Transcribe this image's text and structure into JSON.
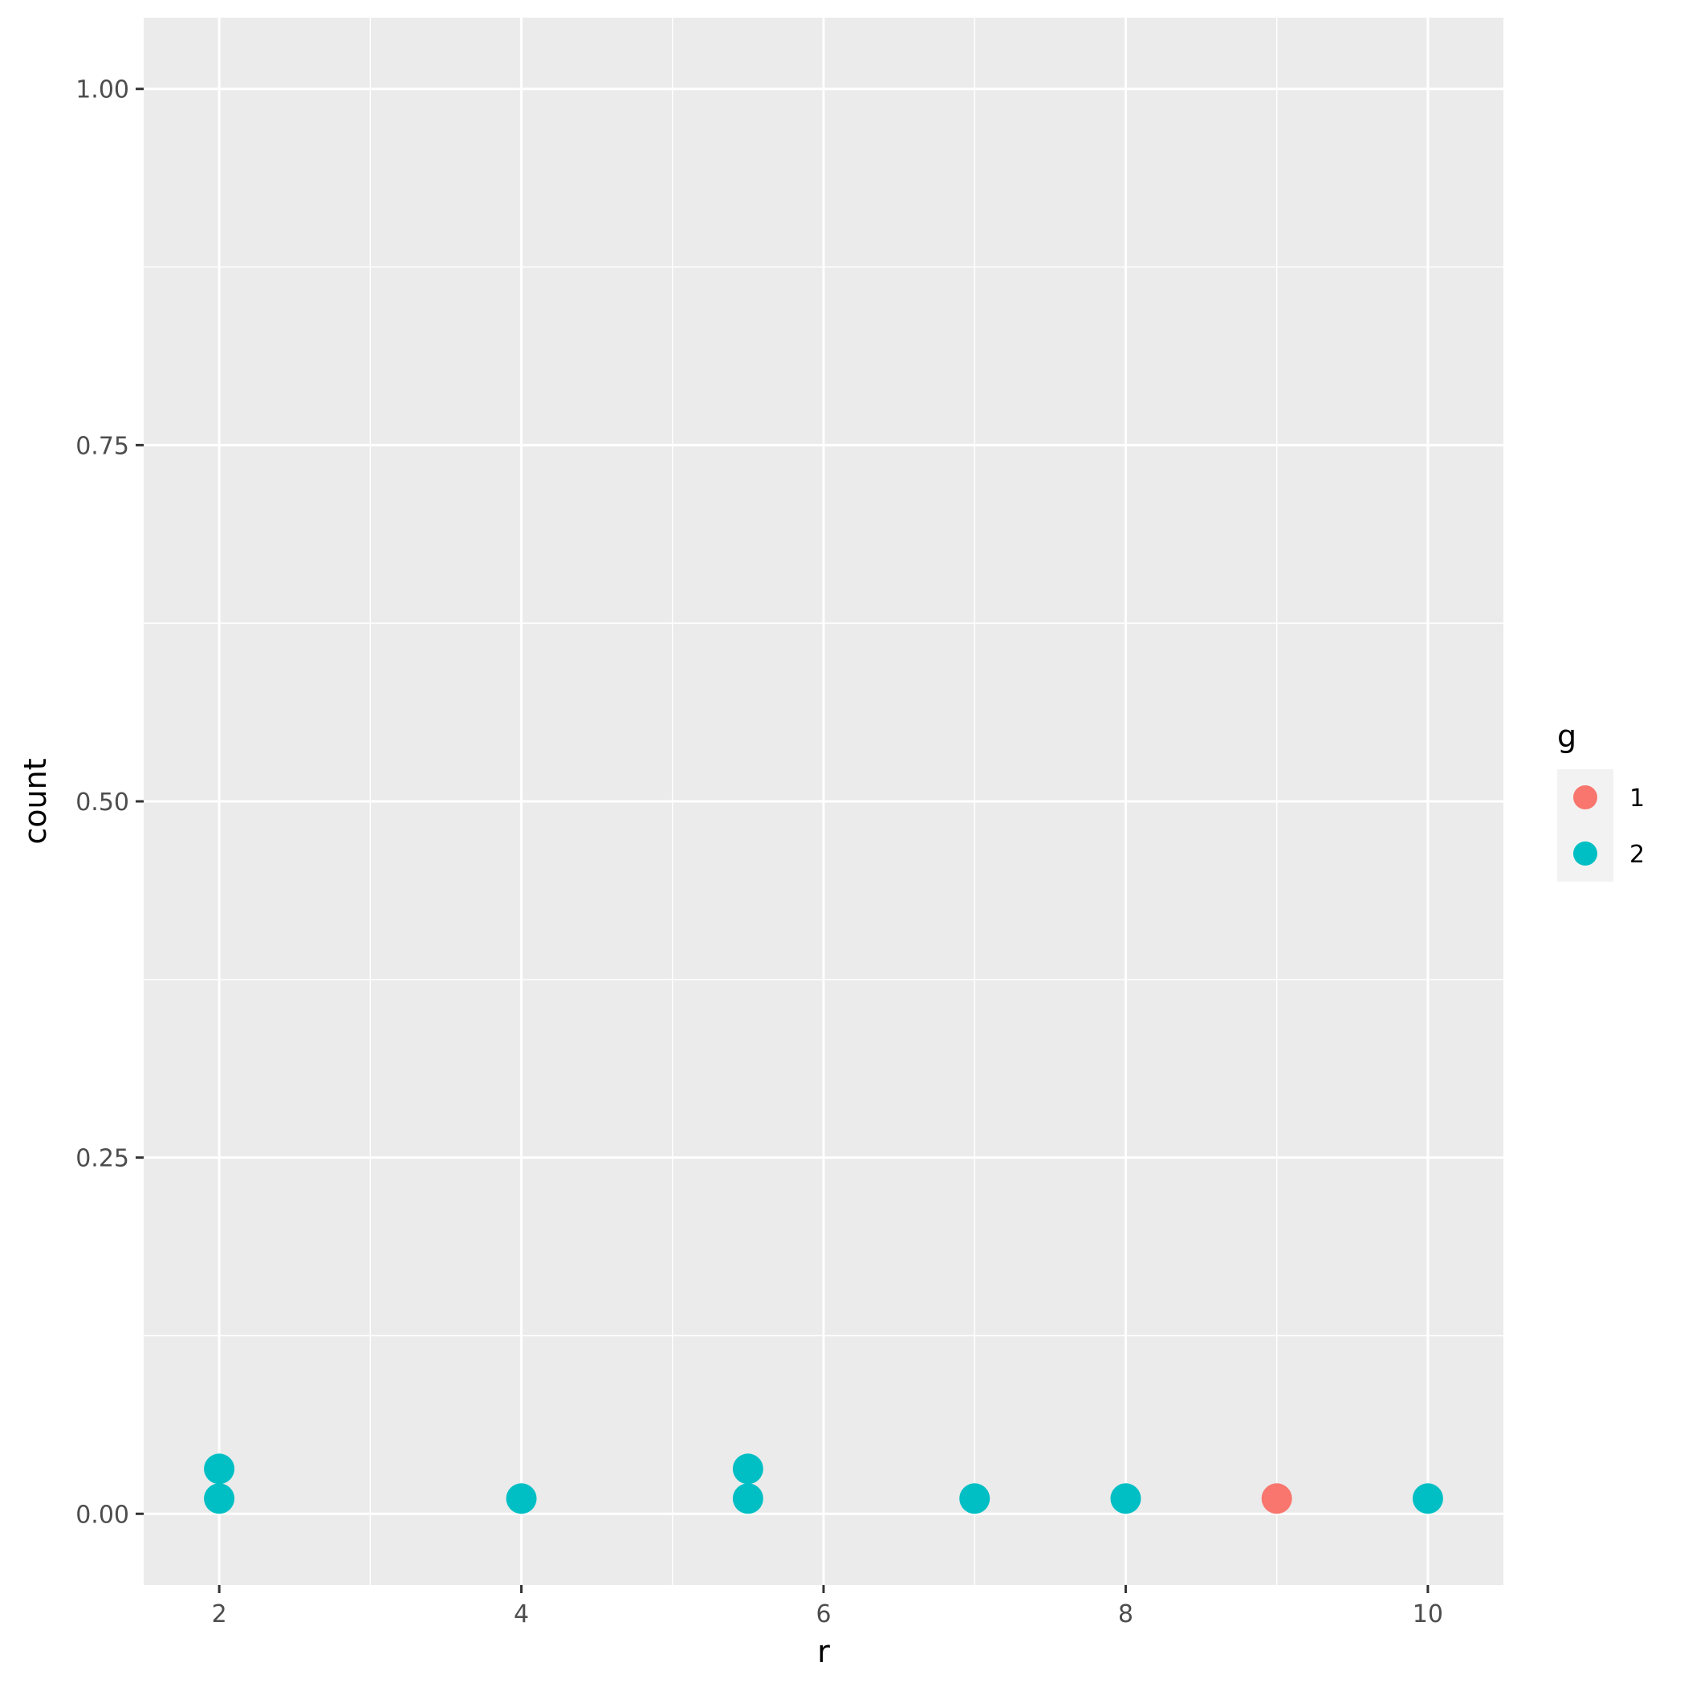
{
  "chart_data": {
    "type": "scatter",
    "title": "",
    "xlabel": "r",
    "ylabel": "count",
    "xlim": [
      1.5,
      10.5
    ],
    "ylim": [
      -0.05,
      1.05
    ],
    "x_ticks": [
      2,
      4,
      6,
      8,
      10
    ],
    "x_tick_labels": [
      "2",
      "4",
      "6",
      "8",
      "10"
    ],
    "y_ticks": [
      0,
      0.25,
      0.5,
      0.75,
      1
    ],
    "y_tick_labels": [
      "0.00",
      "0.25",
      "0.50",
      "0.75",
      "1.00"
    ],
    "grid": true,
    "legend": {
      "title": "g",
      "placement": "right",
      "entries": [
        {
          "label": "1",
          "color": "#F8766D"
        },
        {
          "label": "2",
          "color": "#00BFC4"
        }
      ]
    },
    "series": [
      {
        "name": "1",
        "color": "#F8766D",
        "points": [
          {
            "x": 9,
            "stack": 1
          }
        ]
      },
      {
        "name": "2",
        "color": "#00BFC4",
        "points": [
          {
            "x": 2,
            "stack": 1
          },
          {
            "x": 2,
            "stack": 2
          },
          {
            "x": 4,
            "stack": 1
          },
          {
            "x": 5.5,
            "stack": 1
          },
          {
            "x": 5.5,
            "stack": 2
          },
          {
            "x": 7,
            "stack": 1
          },
          {
            "x": 8,
            "stack": 1
          },
          {
            "x": 10,
            "stack": 1
          }
        ]
      }
    ],
    "panel_background": "#EBEBEB",
    "gridline_color": "#FFFFFF",
    "legend_key_background": "#F2F2F2"
  }
}
